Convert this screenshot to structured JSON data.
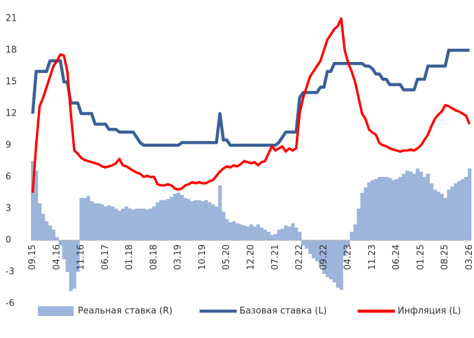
{
  "chart_data": {
    "type": "bar",
    "categories": [
      "09.15",
      null,
      null,
      null,
      null,
      null,
      null,
      "04.16",
      null,
      null,
      null,
      null,
      null,
      null,
      "11.16",
      null,
      null,
      null,
      null,
      null,
      null,
      "06.17",
      null,
      null,
      null,
      null,
      null,
      null,
      "01.18",
      null,
      null,
      null,
      null,
      null,
      null,
      "08.18",
      null,
      null,
      null,
      null,
      null,
      null,
      "03.19",
      null,
      null,
      null,
      null,
      null,
      null,
      "10.19",
      null,
      null,
      null,
      null,
      null,
      null,
      "05.20",
      null,
      null,
      null,
      null,
      null,
      null,
      "12.20",
      null,
      null,
      null,
      null,
      null,
      null,
      "07.21",
      null,
      null,
      null,
      null,
      null,
      null,
      "02.22",
      null,
      null,
      null,
      null,
      null,
      null,
      "09.22",
      null,
      null,
      null,
      null,
      null,
      null,
      "04.23",
      null,
      null,
      null,
      null,
      null,
      null,
      "11.23",
      null,
      null,
      null,
      null,
      null,
      null,
      "06.24",
      null,
      null,
      null,
      null,
      null,
      null,
      "01.25",
      null,
      null,
      null,
      null,
      null,
      null,
      "08.25",
      null,
      null,
      null,
      null,
      null,
      null,
      "03.26"
    ],
    "series": [
      {
        "name": "Реальная ставка (R)",
        "type": "bar",
        "color": "#9db5db",
        "values": [
          7.5,
          6.6,
          3.5,
          2.5,
          1.8,
          1.4,
          1.0,
          0.3,
          -0.5,
          -1.8,
          -3,
          -4.8,
          -4.6,
          -3,
          4,
          4,
          4.2,
          3.7,
          3.5,
          3.5,
          3.4,
          3.2,
          3.3,
          3.2,
          3.0,
          2.8,
          3.0,
          3.2,
          3.0,
          2.9,
          3.0,
          3.0,
          3.0,
          2.9,
          3.0,
          3.2,
          3.6,
          3.8,
          3.8,
          3.9,
          4.1,
          4.4,
          4.5,
          4.3,
          4.0,
          3.9,
          3.7,
          3.8,
          3.8,
          3.7,
          3.8,
          3.6,
          3.4,
          3.2,
          5.2,
          2.7,
          2.0,
          1.7,
          1.8,
          1.6,
          1.5,
          1.4,
          1.3,
          1.5,
          1.3,
          1.5,
          1.2,
          1.0,
          0.8,
          0.5,
          0.6,
          1.0,
          1.1,
          1.4,
          1.3,
          1.6,
          1.2,
          0.8,
          -0.5,
          -0.8,
          -1.3,
          -1.7,
          -2,
          -2.5,
          -3.2,
          -3.5,
          -3.7,
          -4.0,
          -4.5,
          -4.7,
          -1.5,
          -0.5,
          0.8,
          1.5,
          3,
          4.5,
          5.0,
          5.5,
          5.7,
          5.8,
          6.0,
          6.0,
          6.0,
          5.9,
          5.7,
          5.8,
          6.0,
          6.3,
          6.6,
          6.5,
          6.3,
          6.8,
          6.5,
          6.0,
          6.3,
          5.4,
          4.8,
          4.6,
          4.4,
          4.0,
          4.8,
          5.1,
          5.4,
          5.6,
          5.8,
          6.0,
          6.8
        ]
      },
      {
        "name": "Базовая ставка (L)",
        "type": "line",
        "color": "#3a6096",
        "values": [
          12,
          16,
          16,
          16,
          16,
          17,
          17,
          17,
          17,
          15,
          15,
          13,
          13,
          13,
          12,
          12,
          12,
          12,
          11,
          11,
          11,
          11,
          10.5,
          10.5,
          10.5,
          10.25,
          10.25,
          10.25,
          10.25,
          10.25,
          9.75,
          9.25,
          9,
          9,
          9,
          9,
          9,
          9,
          9,
          9,
          9,
          9,
          9,
          9.25,
          9.25,
          9.25,
          9.25,
          9.25,
          9.25,
          9.25,
          9.25,
          9.25,
          9.25,
          9.25,
          12,
          9.5,
          9.5,
          9,
          9,
          9,
          9,
          9,
          9,
          9,
          9,
          9,
          9,
          9,
          9,
          9,
          9,
          9.25,
          9.75,
          10.25,
          10.25,
          10.25,
          10.25,
          13.5,
          14,
          14,
          14,
          14,
          14,
          14.5,
          14.5,
          16,
          16,
          16.75,
          16.75,
          16.75,
          16.75,
          16.75,
          16.75,
          16.75,
          16.75,
          16.75,
          16.5,
          16.5,
          16.25,
          15.75,
          15.75,
          15.25,
          15.25,
          14.75,
          14.75,
          14.75,
          14.75,
          14.25,
          14.25,
          14.25,
          14.25,
          15.25,
          15.25,
          15.25,
          16.5,
          16.5,
          16.5,
          16.5,
          16.5,
          16.5,
          18,
          18,
          18,
          18,
          18,
          18,
          18
        ]
      },
      {
        "name": "Инфляция (L)",
        "type": "line",
        "color": "#ff0000",
        "values": [
          4.5,
          9,
          12.7,
          13.5,
          14.5,
          15.5,
          16.5,
          17,
          17.6,
          17.5,
          16,
          12,
          8.5,
          8.2,
          7.8,
          7.6,
          7.5,
          7.4,
          7.3,
          7.2,
          7.0,
          6.9,
          7.0,
          7.1,
          7.3,
          7.7,
          7.1,
          7.0,
          6.8,
          6.6,
          6.4,
          6.3,
          6.0,
          6.1,
          6.0,
          6.0,
          5.3,
          5.2,
          5.2,
          5.3,
          5.2,
          4.9,
          4.8,
          4.9,
          5.2,
          5.3,
          5.5,
          5.4,
          5.5,
          5.4,
          5.4,
          5.6,
          5.7,
          6.1,
          6.5,
          6.8,
          7.0,
          6.9,
          7.1,
          7.0,
          7.2,
          7.5,
          7.4,
          7.3,
          7.4,
          7.1,
          7.4,
          7.5,
          8.2,
          8.9,
          8.5,
          8.7,
          8.9,
          8.4,
          8.7,
          8.5,
          8.7,
          12,
          13.5,
          14.5,
          15.5,
          16,
          16.5,
          17,
          18,
          19,
          19.5,
          20,
          20.3,
          21,
          18,
          16.8,
          16,
          15,
          13.5,
          12,
          11.5,
          10.5,
          10.2,
          10,
          9.2,
          9,
          8.9,
          8.7,
          8.6,
          8.5,
          8.4,
          8.5,
          8.5,
          8.6,
          8.5,
          8.7,
          9.0,
          9.5,
          10,
          10.8,
          11.5,
          11.9,
          12.2,
          12.8,
          12.7,
          12.5,
          12.3,
          12.2,
          12.0,
          11.8,
          11.0
        ]
      }
    ],
    "ylim": [
      -7,
      22
    ],
    "yticks": [
      -6,
      -3,
      0,
      3,
      6,
      9,
      12,
      15,
      18,
      21
    ],
    "grid": false,
    "legend": "bottom"
  }
}
